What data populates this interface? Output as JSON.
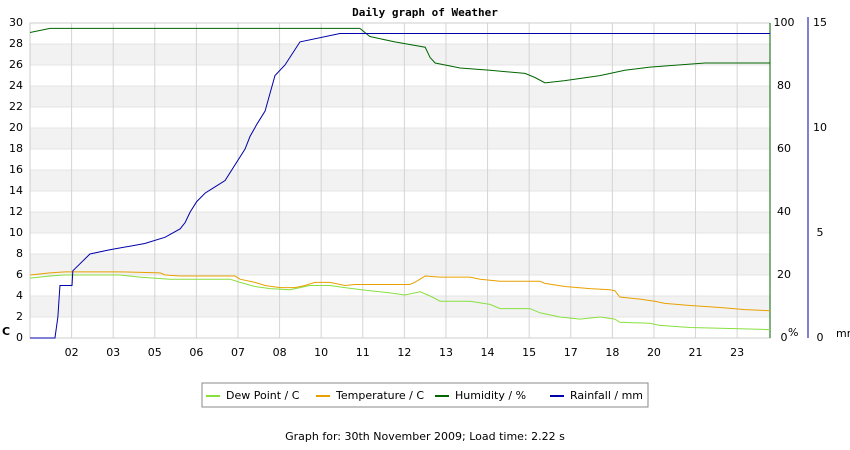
{
  "chart_data": {
    "type": "line",
    "title": "Daily graph of Weather",
    "caption": "Graph for: 30th November 2009; Load time: 2.22 s",
    "y_label": "C",
    "y2_label": "%",
    "y3_label": "mm",
    "xlim": [
      0,
      17.79
    ],
    "xticks": [
      {
        "value": 1,
        "label": "02"
      },
      {
        "value": 2,
        "label": "03"
      },
      {
        "value": 3,
        "label": "05"
      },
      {
        "value": 4,
        "label": "06"
      },
      {
        "value": 5,
        "label": "07"
      },
      {
        "value": 6,
        "label": "08"
      },
      {
        "value": 7,
        "label": "10"
      },
      {
        "value": 8,
        "label": "11"
      },
      {
        "value": 9,
        "label": "12"
      },
      {
        "value": 10,
        "label": "13"
      },
      {
        "value": 11,
        "label": "14"
      },
      {
        "value": 12,
        "label": "15"
      },
      {
        "value": 13,
        "label": "17"
      },
      {
        "value": 14,
        "label": "18"
      },
      {
        "value": 15,
        "label": "20"
      },
      {
        "value": 16,
        "label": "21"
      },
      {
        "value": 17,
        "label": "23"
      }
    ],
    "ylim": [
      0,
      30
    ],
    "yticks": [
      0,
      2,
      4,
      6,
      8,
      10,
      12,
      14,
      16,
      18,
      20,
      22,
      24,
      26,
      28,
      30
    ],
    "y2lim": [
      0,
      100
    ],
    "y2ticks": [
      0,
      20,
      40,
      60,
      80,
      100
    ],
    "y3lim": [
      0,
      15
    ],
    "y3ticks": [
      0,
      5,
      10,
      15
    ],
    "grid": true,
    "y_color": "#e8a000",
    "y2_color": "#006600",
    "y3_color": "#0000aa",
    "series": [
      {
        "name": "Dew Point / C",
        "color": "#88e040",
        "axis": "y",
        "x": [
          0,
          0.48,
          0.84,
          2.16,
          2.64,
          3.37,
          4.81,
          5.05,
          5.41,
          5.77,
          6.25,
          6.49,
          6.73,
          7.21,
          7.57,
          8.17,
          8.65,
          9.01,
          9.38,
          9.62,
          9.86,
          10.58,
          11.06,
          11.3,
          12.02,
          12.26,
          12.74,
          13.22,
          13.7,
          14.06,
          14.18,
          14.9,
          15.14,
          15.87,
          16.83,
          17.79
        ],
        "values": [
          5.7,
          5.9,
          6.0,
          6.0,
          5.8,
          5.6,
          5.6,
          5.3,
          4.9,
          4.7,
          4.6,
          4.8,
          5.0,
          5.0,
          4.8,
          4.5,
          4.3,
          4.1,
          4.4,
          4.0,
          3.5,
          3.5,
          3.2,
          2.8,
          2.8,
          2.4,
          2.0,
          1.8,
          2.0,
          1.8,
          1.5,
          1.4,
          1.2,
          1.0,
          0.9,
          0.8
        ]
      },
      {
        "name": "Temperature / C",
        "color": "#e8a000",
        "axis": "y",
        "x": [
          0,
          0.48,
          0.84,
          2.16,
          3.13,
          3.25,
          3.61,
          4.93,
          5.05,
          5.41,
          5.65,
          6.01,
          6.37,
          6.61,
          6.85,
          7.21,
          7.33,
          7.57,
          7.81,
          9.13,
          9.25,
          9.5,
          9.86,
          10.58,
          10.82,
          11.3,
          12.26,
          12.38,
          12.86,
          13.46,
          13.94,
          14.06,
          14.18,
          14.66,
          15.02,
          15.26,
          15.87,
          16.59,
          17.19,
          17.79
        ],
        "values": [
          6.0,
          6.2,
          6.3,
          6.3,
          6.2,
          6.0,
          5.9,
          5.9,
          5.6,
          5.3,
          5.0,
          4.8,
          4.8,
          5.0,
          5.3,
          5.3,
          5.2,
          5.0,
          5.1,
          5.1,
          5.3,
          5.9,
          5.8,
          5.8,
          5.6,
          5.4,
          5.4,
          5.2,
          4.9,
          4.7,
          4.6,
          4.5,
          3.9,
          3.7,
          3.5,
          3.3,
          3.1,
          2.9,
          2.7,
          2.6
        ]
      },
      {
        "name": "Humidity / %",
        "color": "#006600",
        "axis": "y2",
        "x": [
          0,
          0.48,
          7.93,
          8.17,
          8.77,
          9.5,
          9.62,
          9.74,
          10.34,
          11.06,
          11.9,
          12.14,
          12.38,
          12.86,
          13.7,
          14.3,
          14.9,
          16.23,
          17.79
        ],
        "values": [
          97,
          98.3,
          98.3,
          95.7,
          94,
          92.3,
          89,
          87.3,
          85.7,
          85,
          84,
          82.7,
          81,
          81.7,
          83.3,
          85,
          86,
          87.3,
          87.3
        ]
      },
      {
        "name": "Rainfall / mm",
        "color": "#0000aa",
        "axis": "y3",
        "x": [
          0,
          0.6,
          0.67,
          0.72,
          1.01,
          1.03,
          1.44,
          1.92,
          2.76,
          3.25,
          3.61,
          3.73,
          3.85,
          4.01,
          4.21,
          4.45,
          4.69,
          5.17,
          5.29,
          5.46,
          5.65,
          5.89,
          6.13,
          6.49,
          7.45,
          17.79
        ],
        "values": [
          0,
          0,
          1,
          2.5,
          2.5,
          3.2,
          4,
          4.2,
          4.5,
          4.8,
          5.2,
          5.5,
          6,
          6.5,
          6.9,
          7.2,
          7.5,
          9,
          9.6,
          10.2,
          10.8,
          12.5,
          13,
          14.1,
          14.5,
          14.5
        ]
      }
    ]
  }
}
